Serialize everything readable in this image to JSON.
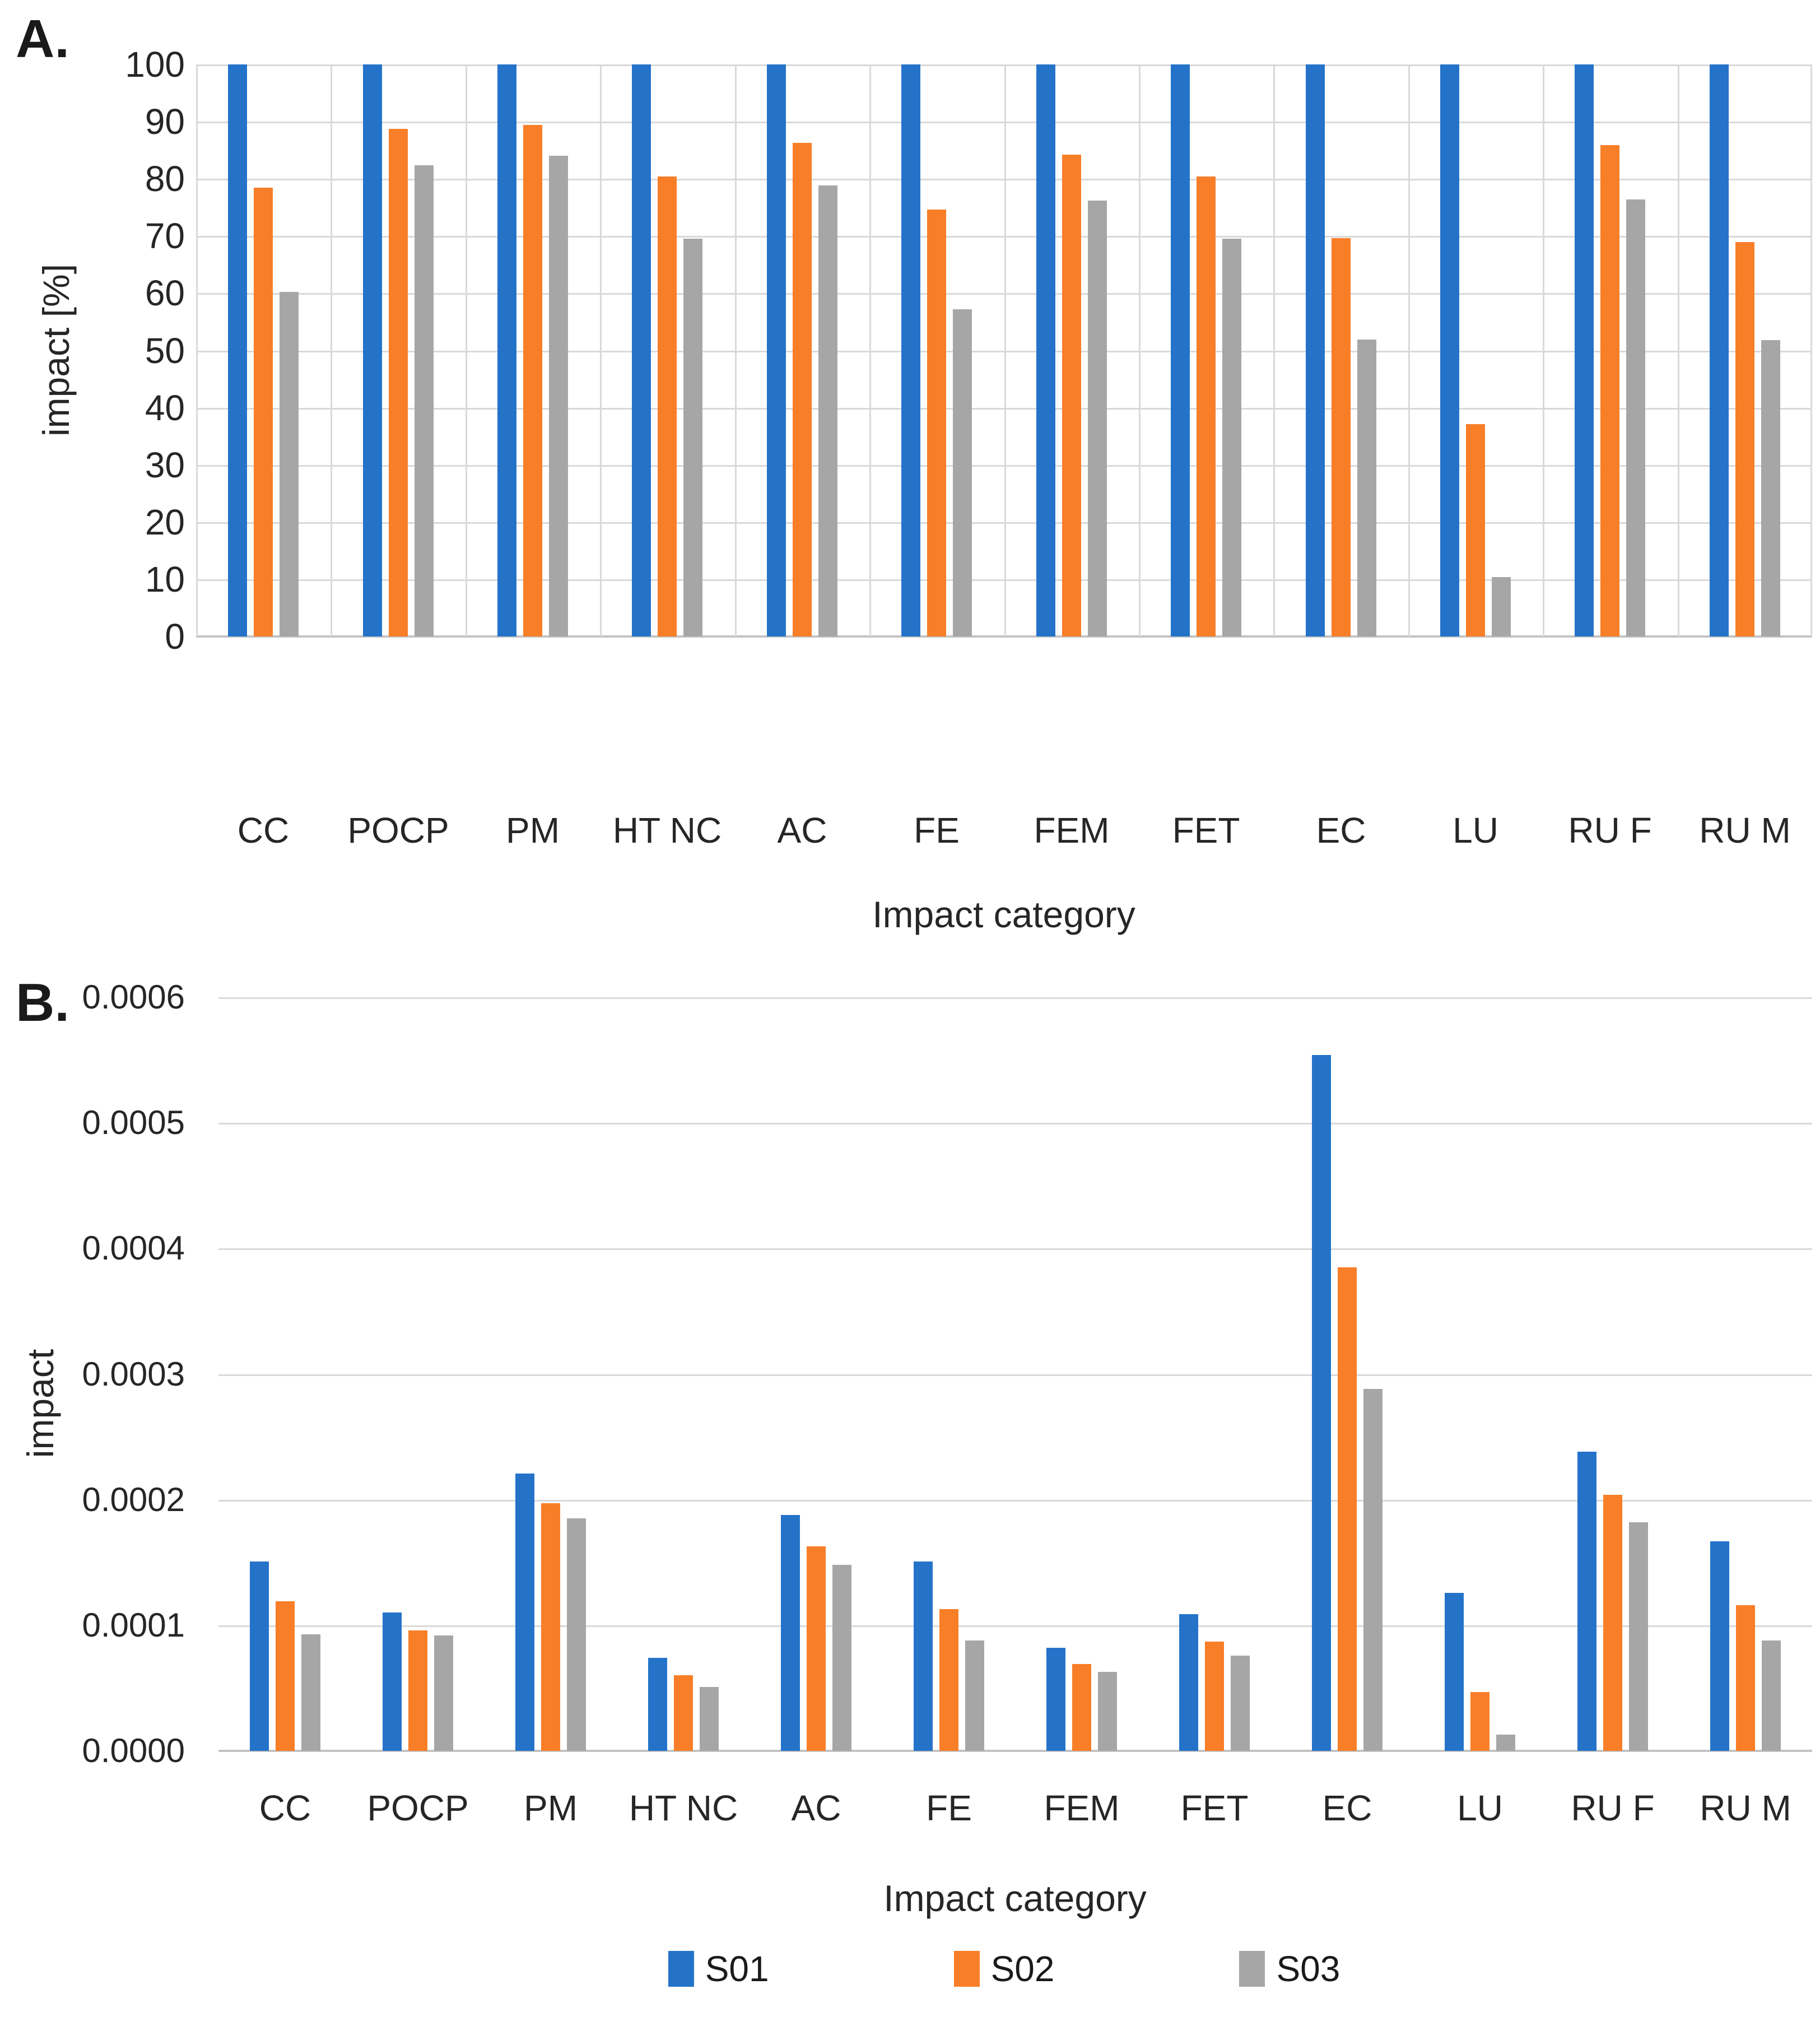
{
  "figure": {
    "panel_a_label": "A.",
    "panel_b_label": "B."
  },
  "colors": {
    "s01": "#2473C9",
    "s02": "#F87E28",
    "s03": "#A6A6A6",
    "gridline": "#D9D9D9",
    "axis_line": "#C3C3C3",
    "text": "#262626"
  },
  "legend": {
    "items": [
      {
        "label": "S01",
        "color": "#2473C9"
      },
      {
        "label": "S02",
        "color": "#F87E28"
      },
      {
        "label": "S03",
        "color": "#A6A6A6"
      }
    ]
  },
  "chart_data": [
    {
      "id": "A",
      "type": "bar",
      "panel_label": "A.",
      "xlabel": "Impact category",
      "ylabel": "impact [%]",
      "ylim": [
        0,
        100
      ],
      "ytick_step": 10,
      "ytick_labels": [
        "100",
        "90",
        "80",
        "70",
        "60",
        "50",
        "40",
        "30",
        "20",
        "10",
        "0"
      ],
      "grid": {
        "horizontal": true,
        "vertical": true
      },
      "legend_position": "none",
      "categories": [
        "CC",
        "POCP",
        "PM",
        "HT NC",
        "AC",
        "FE",
        "FEM",
        "FET",
        "EC",
        "LU",
        "RU F",
        "RU M"
      ],
      "series": [
        {
          "name": "S01",
          "color": "#2473C9",
          "values": [
            100,
            100,
            100,
            100,
            100,
            100,
            100,
            100,
            100,
            100,
            100,
            100
          ]
        },
        {
          "name": "S02",
          "color": "#F87E28",
          "values": [
            78.5,
            88.7,
            89.4,
            80.4,
            86.3,
            74.6,
            84.2,
            80.4,
            69.6,
            37.1,
            85.9,
            69.0
          ]
        },
        {
          "name": "S03",
          "color": "#A6A6A6",
          "values": [
            60.2,
            82.4,
            84.0,
            69.5,
            78.8,
            57.2,
            76.2,
            69.5,
            51.9,
            10.4,
            76.4,
            51.8
          ]
        }
      ]
    },
    {
      "id": "B",
      "type": "bar",
      "panel_label": "B.",
      "xlabel": "Impact category",
      "ylabel": "impact",
      "ylim": [
        0,
        0.0006
      ],
      "ytick_step": 0.0001,
      "ytick_labels": [
        "0.0006",
        "0.0005",
        "0.0004",
        "0.0003",
        "0.0002",
        "0.0001",
        "0.0000"
      ],
      "grid": {
        "horizontal": true,
        "vertical": false
      },
      "legend_position": "bottom",
      "categories": [
        "CC",
        "POCP",
        "PM",
        "HT NC",
        "AC",
        "FE",
        "FEM",
        "FET",
        "EC",
        "LU",
        "RU F",
        "RU M"
      ],
      "series": [
        {
          "name": "S01",
          "color": "#2473C9",
          "values": [
            0.000151,
            0.00011,
            0.000221,
            7.4e-05,
            0.000188,
            0.000151,
            8.2e-05,
            0.000109,
            0.000554,
            0.000126,
            0.000238,
            0.000167
          ]
        },
        {
          "name": "S02",
          "color": "#F87E28",
          "values": [
            0.000119,
            9.6e-05,
            0.000197,
            6e-05,
            0.000163,
            0.000113,
            6.9e-05,
            8.7e-05,
            0.000385,
            4.7e-05,
            0.000204,
            0.000116
          ]
        },
        {
          "name": "S03",
          "color": "#A6A6A6",
          "values": [
            9.3e-05,
            9.2e-05,
            0.000185,
            5.1e-05,
            0.000148,
            8.8e-05,
            6.3e-05,
            7.6e-05,
            0.000288,
            1.3e-05,
            0.000182,
            8.8e-05
          ]
        }
      ]
    }
  ]
}
